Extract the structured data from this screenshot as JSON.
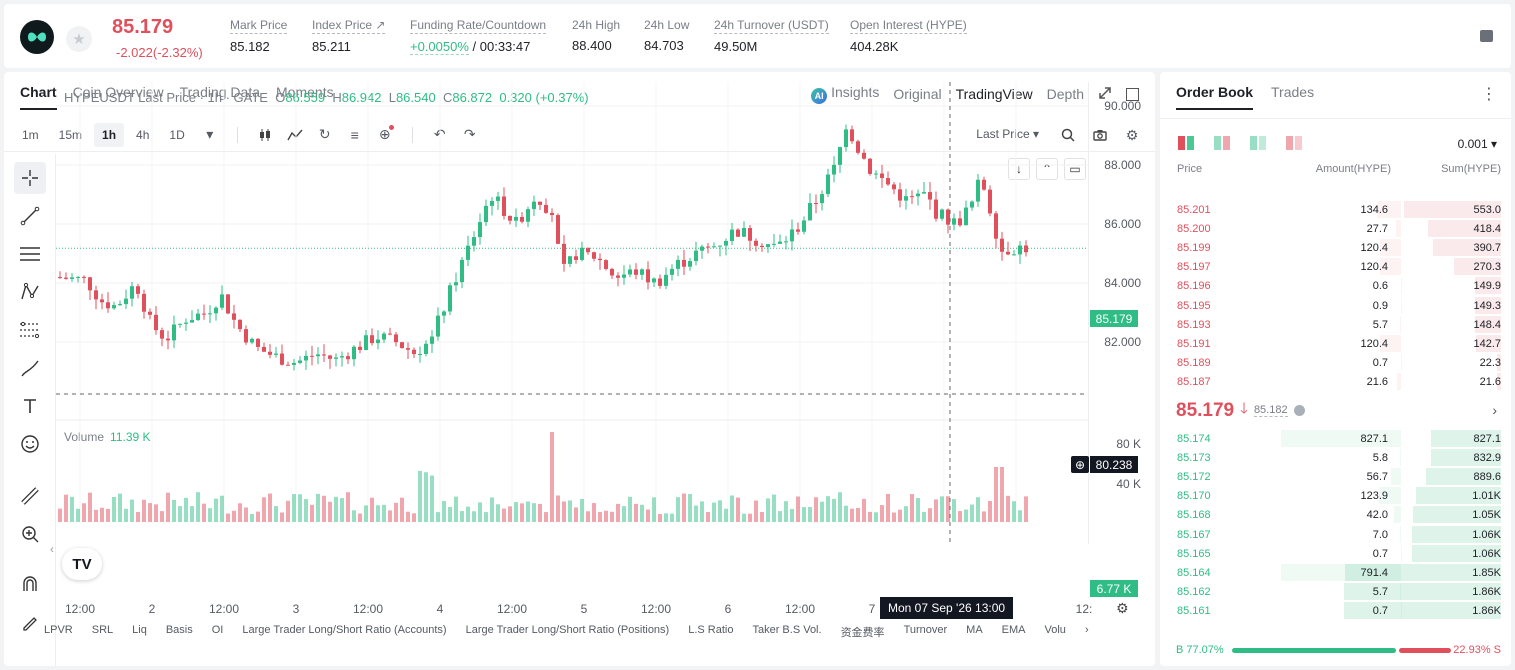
{
  "header": {
    "last_price": "85.179",
    "change": "-2.022(-2.32%)",
    "stats": [
      {
        "label": "Mark Price",
        "value": "85.182"
      },
      {
        "label": "Index Price ↗",
        "value": "85.211"
      },
      {
        "label": "Funding Rate/Countdown",
        "value_green": "+0.0050%",
        "value": " / 00:33:47"
      },
      {
        "label": "24h High",
        "value": "88.400"
      },
      {
        "label": "24h Low",
        "value": "84.703"
      },
      {
        "label": "24h Turnover (USDT)",
        "value": "49.50M"
      },
      {
        "label": "Open Interest (HYPE)",
        "value": "404.28K"
      }
    ]
  },
  "chart_tabs": {
    "left": [
      "Chart",
      "Coin Overview",
      "Trading Data",
      "Moments"
    ],
    "insights": "Insights",
    "right": [
      "Original",
      "TradingView",
      "Depth"
    ]
  },
  "toolbar": {
    "timeframes": [
      "1m",
      "15m",
      "1h",
      "4h",
      "1D"
    ],
    "price_type": "Last Price"
  },
  "legend": {
    "symbol": "HYPEUSDT Last Price · 1h · GATE",
    "o_label": "O",
    "o": "86.559",
    "h_label": "H",
    "h": "86.942",
    "l_label": "L",
    "l": "86.540",
    "c_label": "C",
    "c": "86.872",
    "chg": "0.320 (+0.37%)"
  },
  "volume": {
    "label": "Volume",
    "value": "11.39 K",
    "axis": [
      "80 K",
      "40 K"
    ],
    "tag": "6.77 K"
  },
  "price_axis": [
    "90.000",
    "88.000",
    "86.000",
    "84.000",
    "82.000"
  ],
  "price_tag_current": "85.179",
  "price_tag_cross": "80.238",
  "x_axis": [
    "12:00",
    "2",
    "12:00",
    "3",
    "12:00",
    "4",
    "12:00",
    "5",
    "12:00",
    "6",
    "12:00",
    "7",
    "12:"
  ],
  "crosshair_label": "Mon 07 Sep '26   13:00",
  "indicators": [
    "LPVR",
    "SRL",
    "Liq",
    "Basis",
    "OI",
    "Large Trader Long/Short Ratio (Accounts)",
    "Large Trader Long/Short Ratio (Positions)",
    "L.S Ratio",
    "Taker B.S Vol.",
    "资金费率",
    "Turnover",
    "MA",
    "EMA",
    "Volu"
  ],
  "order_book": {
    "tabs": [
      "Order Book",
      "Trades"
    ],
    "precision": "0.001",
    "headers": {
      "price": "Price",
      "amount": "Amount(HYPE)",
      "sum": "Sum(HYPE)"
    },
    "asks": [
      {
        "price": "85.201",
        "amount": "134.6",
        "sum": "553.0"
      },
      {
        "price": "85.200",
        "amount": "27.7",
        "sum": "418.4"
      },
      {
        "price": "85.199",
        "amount": "120.4",
        "sum": "390.7"
      },
      {
        "price": "85.197",
        "amount": "120.4",
        "sum": "270.3"
      },
      {
        "price": "85.196",
        "amount": "0.6",
        "sum": "149.9"
      },
      {
        "price": "85.195",
        "amount": "0.9",
        "sum": "149.3"
      },
      {
        "price": "85.193",
        "amount": "5.7",
        "sum": "148.4"
      },
      {
        "price": "85.191",
        "amount": "120.4",
        "sum": "142.7"
      },
      {
        "price": "85.189",
        "amount": "0.7",
        "sum": "22.3"
      },
      {
        "price": "85.187",
        "amount": "21.6",
        "sum": "21.6"
      }
    ],
    "mid_price": "85.179",
    "mid_mark": "85.182",
    "bids": [
      {
        "price": "85.174",
        "amount": "827.1",
        "sum": "827.1"
      },
      {
        "price": "85.173",
        "amount": "5.8",
        "sum": "832.9"
      },
      {
        "price": "85.172",
        "amount": "56.7",
        "sum": "889.6"
      },
      {
        "price": "85.170",
        "amount": "123.9",
        "sum": "1.01K"
      },
      {
        "price": "85.168",
        "amount": "42.0",
        "sum": "1.05K"
      },
      {
        "price": "85.167",
        "amount": "7.0",
        "sum": "1.06K"
      },
      {
        "price": "85.165",
        "amount": "0.7",
        "sum": "1.06K"
      },
      {
        "price": "85.164",
        "amount": "791.4",
        "sum": "1.85K"
      },
      {
        "price": "85.162",
        "amount": "5.7",
        "sum": "1.86K"
      },
      {
        "price": "85.161",
        "amount": "0.7",
        "sum": "1.86K"
      }
    ],
    "buy_ratio": "B 77.07%",
    "sell_ratio": "22.93% S"
  },
  "colors": {
    "up": "#2fbd85",
    "down": "#e0505c"
  }
}
